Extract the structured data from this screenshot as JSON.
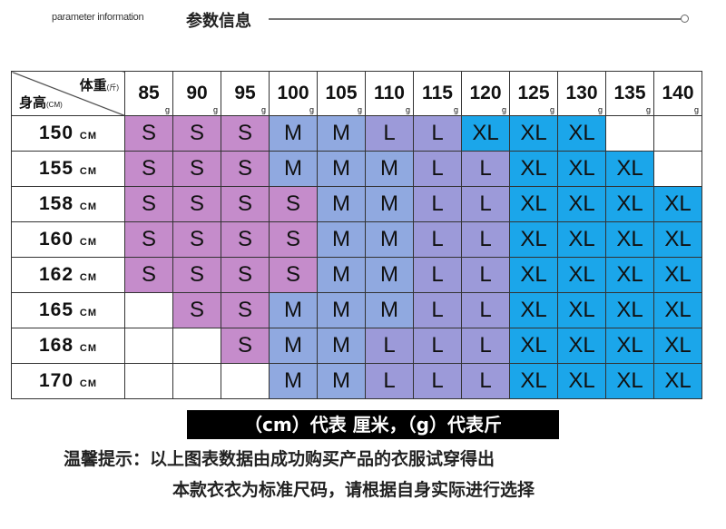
{
  "header": {
    "en": "parameter information",
    "cn": "参数信息"
  },
  "table": {
    "weight_label": "体重",
    "weight_unit": "(斤)",
    "height_label": "身高",
    "height_unit": "(CM)",
    "weight_unit_suffix": "g",
    "height_unit_suffix": "CM",
    "weights": [
      "85",
      "90",
      "95",
      "100",
      "105",
      "110",
      "115",
      "120",
      "125",
      "130",
      "135",
      "140"
    ],
    "rows": [
      {
        "height": "150",
        "sizes": [
          "S",
          "S",
          "S",
          "M",
          "M",
          "L",
          "L",
          "XL",
          "XL",
          "XL",
          "",
          ""
        ]
      },
      {
        "height": "155",
        "sizes": [
          "S",
          "S",
          "S",
          "M",
          "M",
          "M",
          "L",
          "L",
          "XL",
          "XL",
          "XL",
          ""
        ]
      },
      {
        "height": "158",
        "sizes": [
          "S",
          "S",
          "S",
          "S",
          "M",
          "M",
          "L",
          "L",
          "XL",
          "XL",
          "XL",
          "XL"
        ]
      },
      {
        "height": "160",
        "sizes": [
          "S",
          "S",
          "S",
          "S",
          "M",
          "M",
          "L",
          "L",
          "XL",
          "XL",
          "XL",
          "XL"
        ]
      },
      {
        "height": "162",
        "sizes": [
          "S",
          "S",
          "S",
          "S",
          "M",
          "M",
          "L",
          "L",
          "XL",
          "XL",
          "XL",
          "XL"
        ]
      },
      {
        "height": "165",
        "sizes": [
          "",
          "S",
          "S",
          "M",
          "M",
          "M",
          "L",
          "L",
          "XL",
          "XL",
          "XL",
          "XL"
        ]
      },
      {
        "height": "168",
        "sizes": [
          "",
          "",
          "S",
          "M",
          "M",
          "L",
          "L",
          "L",
          "XL",
          "XL",
          "XL",
          "XL"
        ]
      },
      {
        "height": "170",
        "sizes": [
          "",
          "",
          "",
          "M",
          "M",
          "L",
          "L",
          "L",
          "XL",
          "XL",
          "XL",
          "XL"
        ]
      }
    ],
    "size_colors": {
      "S": "#c58ccb",
      "M": "#90a9e0",
      "L": "#9c9ad9",
      "XL": "#1ba6ea"
    }
  },
  "note": "（cm）代表 厘米，（g）代表斤",
  "tips": {
    "line1": "温馨提示：以上图表数据由成功购买产品的衣服试穿得出",
    "line2": "本款衣衣为标准尺码，请根据自身实际进行选择"
  }
}
